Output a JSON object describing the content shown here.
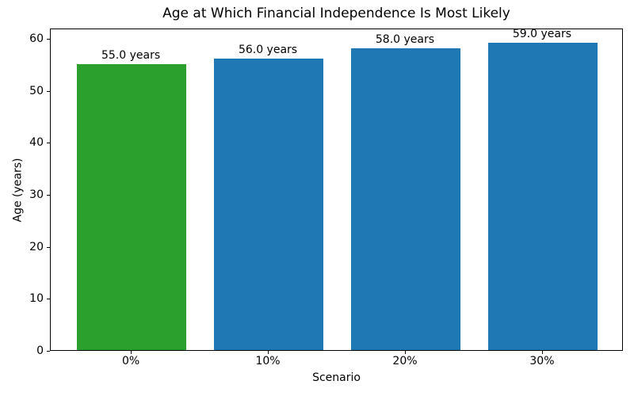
{
  "chart_data": {
    "type": "bar",
    "title": "Age at Which Financial Independence Is Most Likely",
    "xlabel": "Scenario",
    "ylabel": "Age (years)",
    "categories": [
      "0%",
      "10%",
      "20%",
      "30%"
    ],
    "values": [
      55.0,
      56.0,
      58.0,
      59.0
    ],
    "bar_labels": [
      "55.0 years",
      "56.0 years",
      "58.0 years",
      "59.0 years"
    ],
    "bar_colors": [
      "#2ca02c",
      "#1f77b4",
      "#1f77b4",
      "#1f77b4"
    ],
    "yticks": [
      0,
      10,
      20,
      30,
      40,
      50,
      60
    ],
    "ylim": [
      0,
      61.95
    ],
    "grid": false,
    "legend": null,
    "bar_width_ratio": 0.8,
    "x_margin": 0.59
  }
}
